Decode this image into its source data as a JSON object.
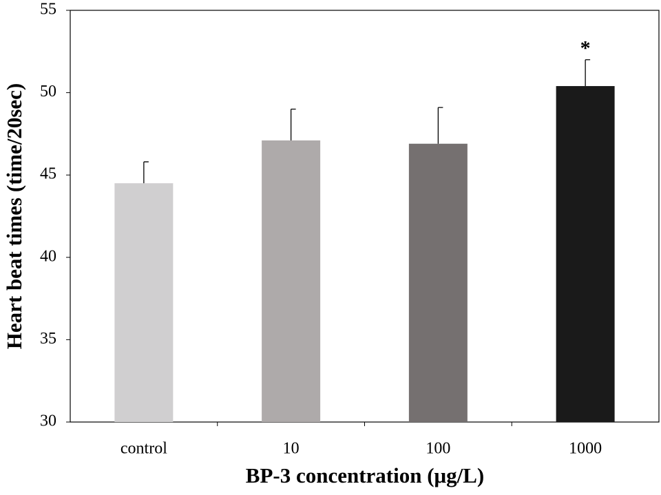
{
  "chart_data": {
    "type": "bar",
    "x_label": "BP-3 concentration (μg/L)",
    "y_label": "Heart beat times (time/20sec)",
    "categories": [
      "control",
      "10",
      "100",
      "1000"
    ],
    "values": [
      44.5,
      47.1,
      46.9,
      50.4
    ],
    "errors": [
      1.3,
      1.9,
      2.2,
      1.6
    ],
    "colors": [
      "#d0cfd0",
      "#aeaaaa",
      "#757070",
      "#1a1a1a"
    ],
    "annotations": [
      null,
      null,
      null,
      "*"
    ],
    "ylim": [
      30,
      55
    ],
    "yticks": [
      30,
      35,
      40,
      45,
      50,
      55
    ],
    "grid": false
  }
}
